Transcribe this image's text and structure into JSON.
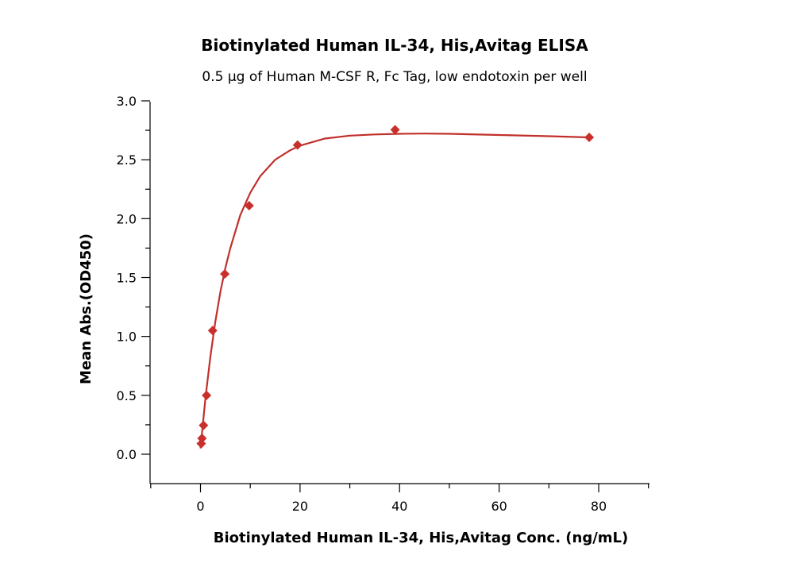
{
  "chart_data": {
    "type": "scatter",
    "title": "Biotinylated Human IL-34, His,Avitag ELISA",
    "subtitle": "0.5 μg of Human M-CSF R, Fc Tag, low endotoxin per well",
    "xlabel": "Biotinylated Human IL-34, His,Avitag Conc. (ng/mL)",
    "ylabel": "Mean Abs.(OD450)",
    "xlim": [
      -10,
      90
    ],
    "ylim": [
      -0.25,
      3.0
    ],
    "xticks": [
      0,
      20,
      40,
      60,
      80
    ],
    "yticks": [
      0.0,
      0.5,
      1.0,
      1.5,
      2.0,
      2.5,
      3.0
    ],
    "xtick_labels": [
      "0",
      "20",
      "40",
      "60",
      "80"
    ],
    "ytick_labels": [
      "0.0",
      "0.5",
      "1.0",
      "1.5",
      "2.0",
      "2.5",
      "3.0"
    ],
    "grid": false,
    "series": [
      {
        "color": "#c9302c",
        "marker": "diamond",
        "x": [
          0.153,
          0.305,
          0.61,
          1.22,
          2.44,
          4.88,
          9.77,
          19.5,
          39.1,
          78.1
        ],
        "y": [
          0.09,
          0.135,
          0.245,
          0.5,
          1.05,
          1.53,
          2.11,
          2.625,
          2.755,
          2.69
        ]
      }
    ],
    "fit_curve": {
      "color": "#c0302b",
      "x": [
        0,
        1,
        2,
        3,
        4,
        5,
        6,
        8,
        10,
        12,
        15,
        18,
        20,
        25,
        30,
        35,
        40,
        45,
        50,
        60,
        70,
        78
      ],
      "y": [
        0.05,
        0.48,
        0.83,
        1.13,
        1.38,
        1.58,
        1.75,
        2.03,
        2.22,
        2.36,
        2.5,
        2.58,
        2.62,
        2.68,
        2.705,
        2.715,
        2.72,
        2.722,
        2.72,
        2.71,
        2.7,
        2.69
      ]
    }
  }
}
